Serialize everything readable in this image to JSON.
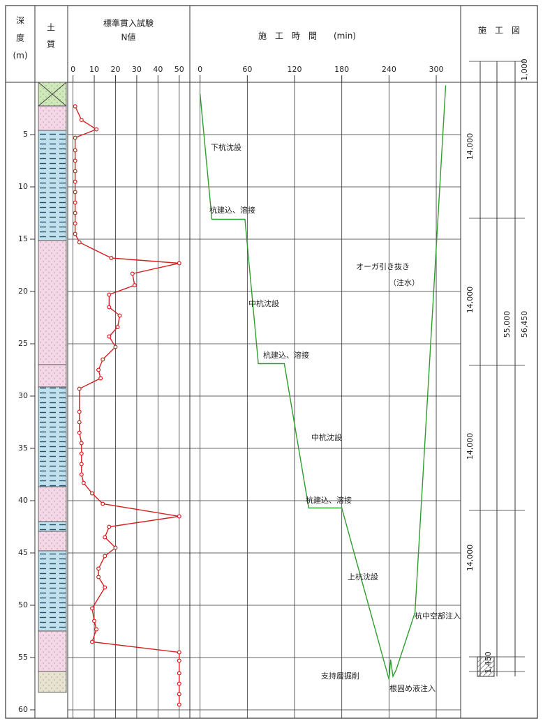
{
  "chart_data": [
    {
      "type": "line",
      "title": "標準貫入試験",
      "xlabel": "N値",
      "ylabel": [
        "深",
        "度",
        "(m)"
      ],
      "color": "#d62020",
      "x": [
        1,
        4,
        11,
        1,
        1,
        1,
        1,
        1,
        1,
        1,
        1,
        1,
        1,
        3,
        18,
        50,
        28,
        29,
        17,
        17,
        22,
        21,
        17,
        20,
        14,
        12,
        13,
        3,
        3,
        3,
        3,
        4,
        4,
        4,
        4,
        5,
        9,
        14,
        50,
        17,
        15,
        20,
        15,
        12,
        12,
        15,
        9,
        10,
        11,
        9,
        50,
        50,
        50,
        50,
        50,
        50
      ],
      "y": [
        2.3,
        3.6,
        4.5,
        5.3,
        6.5,
        7.5,
        8.5,
        9.5,
        10.5,
        11.5,
        12.5,
        13.5,
        14.5,
        15.3,
        16.8,
        17.3,
        18.3,
        19.4,
        20.3,
        21.5,
        22.3,
        23.4,
        24.3,
        25.3,
        26.5,
        27.5,
        28.3,
        29.3,
        31.5,
        32.5,
        33.5,
        34.5,
        35.5,
        36.5,
        37.5,
        38.3,
        39.3,
        40.3,
        41.5,
        42.5,
        43.5,
        44.5,
        45.3,
        46.5,
        47.3,
        48.3,
        50.3,
        51.5,
        52.3,
        53.5,
        54.5,
        55.3,
        56.5,
        57.5,
        58.5,
        59.5
      ],
      "xlim": [
        -2.5,
        55
      ],
      "xticks": [
        0,
        10,
        20,
        30,
        40,
        50
      ],
      "ylim": [
        0,
        60.8
      ],
      "yticks": [
        5,
        10,
        15,
        20,
        25,
        30,
        35,
        40,
        45,
        50,
        55,
        60
      ],
      "grid": true
    },
    {
      "type": "line",
      "title": "施　工　時　間　　(min)",
      "color": "#2e9e2e",
      "x": [
        0,
        15,
        57,
        74,
        107,
        138,
        180,
        240,
        242,
        245,
        249,
        273,
        312
      ],
      "y": [
        1.1,
        13.1,
        13.1,
        26.9,
        26.9,
        40.7,
        40.7,
        57.1,
        55.2,
        56.8,
        56.2,
        50.7,
        0.3
      ],
      "xlim": [
        -13,
        331
      ],
      "xticks": [
        0,
        60,
        120,
        180,
        240,
        300
      ],
      "ylim": [
        0,
        60.8
      ],
      "yticks": [
        5,
        10,
        15,
        20,
        25,
        30,
        35,
        40,
        45,
        50,
        55,
        60
      ],
      "grid": true,
      "annotations": [
        "下杭沈設",
        "杭建込、溶接",
        "中杭沈設",
        "杭建込、溶接",
        "中杭沈設",
        "杭建込、溶接",
        "上杭沈設",
        "オーガ引き抜き",
        "（注水）",
        "杭中空部注入",
        "支持層掘削",
        "根固め液注入"
      ]
    }
  ],
  "soil": {
    "title": [
      "土",
      "質"
    ]
  },
  "construction_diagram": {
    "title": "施　工　図",
    "labels": [
      "1,000",
      "14,000",
      "14,000",
      "14,000",
      "14,000",
      "1,450",
      "55,000",
      "56,450"
    ]
  }
}
